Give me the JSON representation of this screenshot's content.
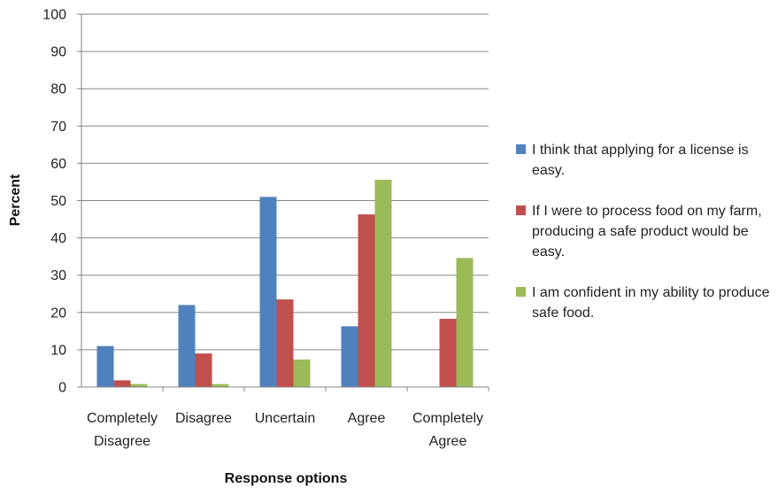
{
  "chart_data": {
    "type": "bar",
    "title": "",
    "xlabel": "Response options",
    "ylabel": "Percent",
    "ylim": [
      0,
      100
    ],
    "yticks": [
      0,
      10,
      20,
      30,
      40,
      50,
      60,
      70,
      80,
      90,
      100
    ],
    "grid": true,
    "legend_position": "right",
    "categories": [
      [
        "Completely",
        "Disagree"
      ],
      [
        "Disagree"
      ],
      [
        "Uncertain"
      ],
      [
        "Agree"
      ],
      [
        "Completely",
        "Agree"
      ]
    ],
    "series": [
      {
        "name": "I think that applying for a license is easy.",
        "color": "#4F81BD",
        "values": [
          11,
          22,
          51,
          16.3,
          0
        ]
      },
      {
        "name": "If I were to process food on my farm, producing a safe product would be easy.",
        "color": "#C0504D",
        "values": [
          1.8,
          9,
          23.5,
          46.3,
          18.3
        ]
      },
      {
        "name": "I am confident in my ability to produce safe food.",
        "color": "#9BBB59",
        "values": [
          0.8,
          0.8,
          7.4,
          55.6,
          34.6
        ]
      }
    ]
  }
}
